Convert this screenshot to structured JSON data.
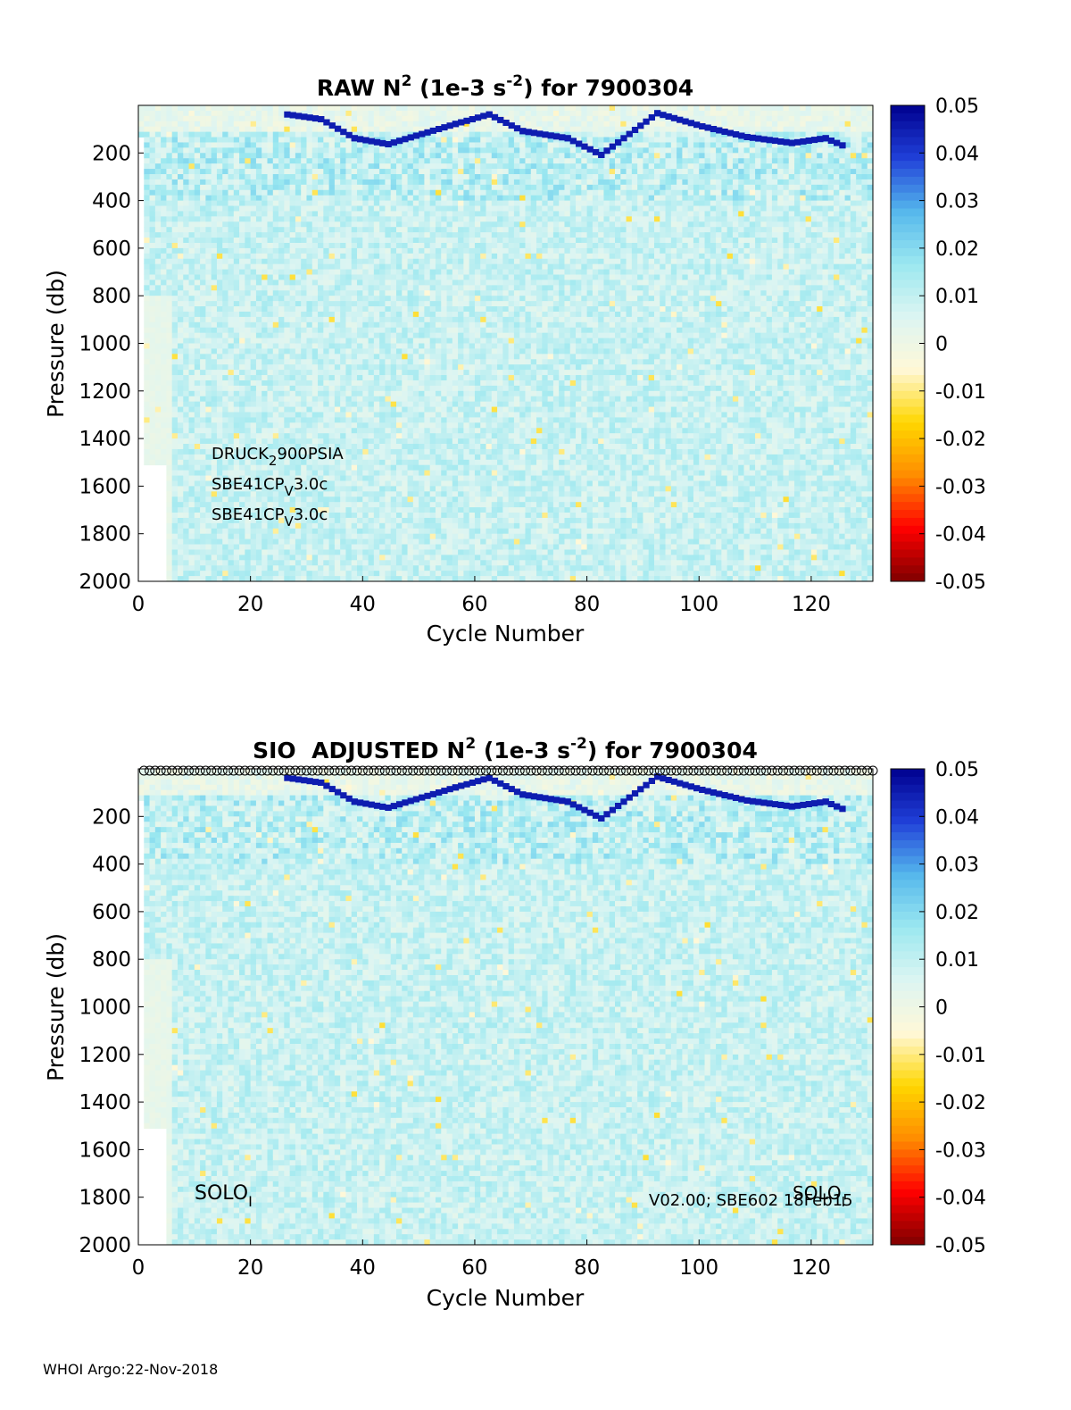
{
  "footer": "WHOI Argo:22-Nov-2018",
  "chart_data": [
    {
      "type": "heatmap",
      "title_parts": [
        "RAW N",
        "2",
        " (1e-3 s",
        "-2",
        ") for 7900304"
      ],
      "xlabel": "Cycle Number",
      "ylabel": "Pressure (db)",
      "xlim": [
        0,
        131
      ],
      "ylim": [
        2000,
        0
      ],
      "x_ticks": [
        0,
        20,
        40,
        60,
        80,
        100,
        120
      ],
      "y_ticks": [
        200,
        400,
        600,
        800,
        1000,
        1200,
        1400,
        1600,
        1800,
        2000
      ],
      "colorbar_ticks": [
        "0.05",
        "0.04",
        "0.03",
        "0.02",
        "0.01",
        "0",
        "-0.01",
        "-0.02",
        "-0.03",
        "-0.04",
        "-0.05"
      ],
      "clim": [
        -0.05,
        0.05
      ],
      "colormap": [
        "#7f0000",
        "#ff0000",
        "#ff8c00",
        "#ffd700",
        "#fff8d8",
        "#dcf5f2",
        "#9be8f0",
        "#55b7ec",
        "#2040d8",
        "#00008f"
      ],
      "sensor_labels": [
        {
          "main": "DRUCK",
          "sub": "2",
          "rest": "900PSIA"
        },
        {
          "main": "SBE41CP",
          "sub": "V",
          "rest": "3.0c"
        },
        {
          "main": "SBE41CP",
          "sub": "V",
          "rest": "3.0c"
        }
      ],
      "strong_layer": [
        [
          26,
          40
        ],
        [
          32,
          60
        ],
        [
          38,
          140
        ],
        [
          44,
          165
        ],
        [
          56,
          80
        ],
        [
          62,
          40
        ],
        [
          68,
          110
        ],
        [
          76,
          140
        ],
        [
          82,
          210
        ],
        [
          92,
          35
        ],
        [
          100,
          90
        ],
        [
          108,
          135
        ],
        [
          116,
          160
        ],
        [
          122,
          140
        ],
        [
          125,
          170
        ]
      ]
    },
    {
      "type": "heatmap",
      "title_parts": [
        "SIO  ADJUSTED N",
        "2",
        " (1e-3 s",
        "-2",
        ") for 7900304"
      ],
      "xlabel": "Cycle Number",
      "ylabel": "Pressure (db)",
      "xlim": [
        0,
        131
      ],
      "ylim": [
        2000,
        0
      ],
      "x_ticks": [
        0,
        20,
        40,
        60,
        80,
        100,
        120
      ],
      "y_ticks": [
        200,
        400,
        600,
        800,
        1000,
        1200,
        1400,
        1600,
        1800,
        2000
      ],
      "colorbar_ticks": [
        "0.05",
        "0.04",
        "0.03",
        "0.02",
        "0.01",
        "0",
        "-0.01",
        "-0.02",
        "-0.03",
        "-0.04",
        "-0.05"
      ],
      "clim": [
        -0.05,
        0.05
      ],
      "colormap": [
        "#7f0000",
        "#ff0000",
        "#ff8c00",
        "#ffd700",
        "#fff8d8",
        "#dcf5f2",
        "#9be8f0",
        "#55b7ec",
        "#2040d8",
        "#00008f"
      ],
      "qc_marker_cycles": 131,
      "solo_left": {
        "main": "SOLO",
        "sub": "I"
      },
      "solo_right": {
        "main": "SOLO",
        "sub": "I"
      },
      "version_label": "V02.00; SBE602 18Feb15",
      "strong_layer": [
        [
          26,
          40
        ],
        [
          32,
          60
        ],
        [
          38,
          140
        ],
        [
          44,
          165
        ],
        [
          56,
          80
        ],
        [
          62,
          40
        ],
        [
          68,
          110
        ],
        [
          76,
          140
        ],
        [
          82,
          210
        ],
        [
          92,
          35
        ],
        [
          100,
          90
        ],
        [
          108,
          135
        ],
        [
          116,
          160
        ],
        [
          122,
          140
        ],
        [
          125,
          170
        ]
      ]
    }
  ]
}
